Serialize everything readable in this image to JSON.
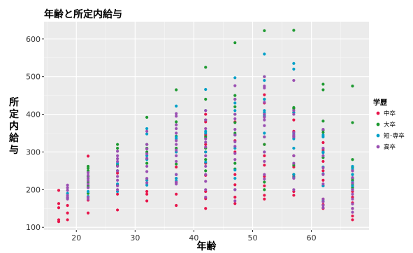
{
  "chart_data": {
    "type": "scatter",
    "title": "年齢と所定内給与",
    "xlabel": "年齢",
    "ylabel": "所定内給与",
    "xlim": [
      14.5,
      69.8
    ],
    "ylim": [
      93,
      646
    ],
    "xticks": [
      20,
      30,
      40,
      50,
      60
    ],
    "yticks": [
      100,
      200,
      300,
      400,
      500,
      600
    ],
    "grid": true,
    "legend": {
      "title": "学歴",
      "position": "right"
    },
    "series": [
      {
        "name": "中卒",
        "color": "#E7154B",
        "points": [
          [
            17,
            198
          ],
          [
            17,
            163
          ],
          [
            17,
            152
          ],
          [
            17,
            120
          ],
          [
            17,
            115
          ],
          [
            18.5,
            158
          ],
          [
            18.5,
            138
          ],
          [
            18.5,
            120
          ],
          [
            22,
            289
          ],
          [
            22,
            172
          ],
          [
            22,
            138
          ],
          [
            27,
            244
          ],
          [
            27,
            212
          ],
          [
            27,
            188
          ],
          [
            27,
            146
          ],
          [
            32,
            225
          ],
          [
            32,
            195
          ],
          [
            32,
            188
          ],
          [
            32,
            170
          ],
          [
            37,
            300
          ],
          [
            37,
            260
          ],
          [
            37,
            230
          ],
          [
            37,
            218
          ],
          [
            37,
            188
          ],
          [
            37,
            158
          ],
          [
            42,
            400
          ],
          [
            42,
            380
          ],
          [
            42,
            345
          ],
          [
            42,
            320
          ],
          [
            42,
            300
          ],
          [
            42,
            270
          ],
          [
            42,
            238
          ],
          [
            42,
            195
          ],
          [
            42,
            176
          ],
          [
            42,
            150
          ],
          [
            47,
            380
          ],
          [
            47,
            345
          ],
          [
            47,
            330
          ],
          [
            47,
            300
          ],
          [
            47,
            240
          ],
          [
            47,
            213
          ],
          [
            47,
            180
          ],
          [
            47,
            163
          ],
          [
            52,
            452
          ],
          [
            52,
            430
          ],
          [
            52,
            395
          ],
          [
            52,
            320
          ],
          [
            52,
            290
          ],
          [
            52,
            265
          ],
          [
            52,
            235
          ],
          [
            52,
            210
          ],
          [
            52,
            185
          ],
          [
            52,
            175
          ],
          [
            57,
            385
          ],
          [
            57,
            355
          ],
          [
            57,
            340
          ],
          [
            57,
            290
          ],
          [
            57,
            260
          ],
          [
            57,
            235
          ],
          [
            57,
            195
          ],
          [
            57,
            185
          ],
          [
            62,
            325
          ],
          [
            62,
            305
          ],
          [
            62,
            275
          ],
          [
            62,
            250
          ],
          [
            62,
            225
          ],
          [
            62,
            210
          ],
          [
            62,
            175
          ],
          [
            62,
            160
          ],
          [
            62,
            150
          ],
          [
            67,
            250
          ],
          [
            67,
            225
          ],
          [
            67,
            210
          ],
          [
            67,
            195
          ],
          [
            67,
            180
          ],
          [
            67,
            165
          ],
          [
            67,
            150
          ],
          [
            67,
            130
          ],
          [
            67,
            120
          ]
        ]
      },
      {
        "name": "大卒",
        "color": "#1E9A31",
        "points": [
          [
            22,
            262
          ],
          [
            22,
            257
          ],
          [
            22,
            250
          ],
          [
            22,
            235
          ],
          [
            22,
            220
          ],
          [
            22,
            210
          ],
          [
            22,
            190
          ],
          [
            27,
            320
          ],
          [
            27,
            310
          ],
          [
            27,
            265
          ],
          [
            27,
            250
          ],
          [
            32,
            392
          ],
          [
            32,
            320
          ],
          [
            32,
            310
          ],
          [
            32,
            300
          ],
          [
            32,
            270
          ],
          [
            37,
            465
          ],
          [
            37,
            380
          ],
          [
            37,
            342
          ],
          [
            37,
            310
          ],
          [
            37,
            268
          ],
          [
            42,
            525
          ],
          [
            42,
            440
          ],
          [
            42,
            385
          ],
          [
            42,
            340
          ],
          [
            42,
            310
          ],
          [
            42,
            280
          ],
          [
            42,
            250
          ],
          [
            47,
            590
          ],
          [
            47,
            450
          ],
          [
            47,
            440
          ],
          [
            47,
            420
          ],
          [
            47,
            400
          ],
          [
            47,
            378
          ],
          [
            47,
            350
          ],
          [
            47,
            270
          ],
          [
            47,
            255
          ],
          [
            52,
            622
          ],
          [
            52,
            500
          ],
          [
            52,
            440
          ],
          [
            52,
            400
          ],
          [
            52,
            340
          ],
          [
            52,
            320
          ],
          [
            52,
            220
          ],
          [
            52,
            200
          ],
          [
            57,
            623
          ],
          [
            57,
            418
          ],
          [
            57,
            415
          ],
          [
            57,
            405
          ],
          [
            57,
            265
          ],
          [
            57,
            240
          ],
          [
            62,
            480
          ],
          [
            62,
            465
          ],
          [
            62,
            382
          ],
          [
            62,
            358
          ],
          [
            62,
            352
          ],
          [
            62,
            300
          ],
          [
            62,
            285
          ],
          [
            67,
            475
          ],
          [
            67,
            378
          ],
          [
            67,
            280
          ],
          [
            67,
            260
          ],
          [
            67,
            240
          ],
          [
            67,
            230
          ],
          [
            67,
            225
          ],
          [
            67,
            215
          ],
          [
            67,
            205
          ]
        ]
      },
      {
        "name": "短･専卒",
        "color": "#00A0C8",
        "points": [
          [
            18.5,
            190
          ],
          [
            18.5,
            178
          ],
          [
            22,
            205
          ],
          [
            22,
            195
          ],
          [
            22,
            182
          ],
          [
            27,
            270
          ],
          [
            27,
            250
          ],
          [
            27,
            215
          ],
          [
            27,
            195
          ],
          [
            32,
            362
          ],
          [
            32,
            348
          ],
          [
            32,
            290
          ],
          [
            32,
            280
          ],
          [
            32,
            225
          ],
          [
            32,
            212
          ],
          [
            37,
            422
          ],
          [
            37,
            340
          ],
          [
            37,
            335
          ],
          [
            37,
            300
          ],
          [
            37,
            240
          ],
          [
            37,
            230
          ],
          [
            37,
            223
          ],
          [
            42,
            466
          ],
          [
            42,
            410
          ],
          [
            42,
            355
          ],
          [
            42,
            350
          ],
          [
            42,
            300
          ],
          [
            42,
            273
          ],
          [
            47,
            497
          ],
          [
            47,
            430
          ],
          [
            47,
            410
          ],
          [
            47,
            345
          ],
          [
            47,
            310
          ],
          [
            47,
            252
          ],
          [
            47,
            230
          ],
          [
            47,
            200
          ],
          [
            52,
            560
          ],
          [
            52,
            490
          ],
          [
            52,
            440
          ],
          [
            52,
            410
          ],
          [
            52,
            405
          ],
          [
            52,
            395
          ],
          [
            52,
            350
          ],
          [
            52,
            300
          ],
          [
            57,
            535
          ],
          [
            57,
            520
          ],
          [
            57,
            405
          ],
          [
            57,
            350
          ],
          [
            57,
            345
          ],
          [
            57,
            335
          ],
          [
            57,
            310
          ],
          [
            57,
            240
          ],
          [
            57,
            232
          ],
          [
            62,
            345
          ],
          [
            62,
            340
          ],
          [
            62,
            300
          ],
          [
            62,
            298
          ],
          [
            62,
            260
          ],
          [
            62,
            242
          ],
          [
            62,
            210
          ],
          [
            62,
            170
          ],
          [
            67,
            262
          ],
          [
            67,
            255
          ],
          [
            67,
            240
          ],
          [
            67,
            220
          ],
          [
            67,
            210
          ],
          [
            67,
            200
          ]
        ]
      },
      {
        "name": "高卒",
        "color": "#9A4FB2",
        "points": [
          [
            18.5,
            212
          ],
          [
            18.5,
            205
          ],
          [
            18.5,
            198
          ],
          [
            18.5,
            185
          ],
          [
            18.5,
            180
          ],
          [
            18.5,
            175
          ],
          [
            22,
            245
          ],
          [
            22,
            238
          ],
          [
            22,
            230
          ],
          [
            22,
            225
          ],
          [
            22,
            215
          ],
          [
            22,
            205
          ],
          [
            22,
            180
          ],
          [
            22,
            175
          ],
          [
            27,
            302
          ],
          [
            27,
            290
          ],
          [
            27,
            282
          ],
          [
            27,
            275
          ],
          [
            27,
            262
          ],
          [
            27,
            250
          ],
          [
            27,
            235
          ],
          [
            27,
            225
          ],
          [
            27,
            210
          ],
          [
            27,
            200
          ],
          [
            32,
            355
          ],
          [
            32,
            320
          ],
          [
            32,
            308
          ],
          [
            32,
            295
          ],
          [
            32,
            283
          ],
          [
            32,
            262
          ],
          [
            32,
            248
          ],
          [
            32,
            230
          ],
          [
            32,
            218
          ],
          [
            37,
            402
          ],
          [
            37,
            395
          ],
          [
            37,
            372
          ],
          [
            37,
            362
          ],
          [
            37,
            350
          ],
          [
            37,
            330
          ],
          [
            37,
            320
          ],
          [
            37,
            305
          ],
          [
            37,
            290
          ],
          [
            37,
            275
          ],
          [
            37,
            240
          ],
          [
            37,
            220
          ],
          [
            37,
            215
          ],
          [
            42,
            410
          ],
          [
            42,
            385
          ],
          [
            42,
            362
          ],
          [
            42,
            335
          ],
          [
            42,
            326
          ],
          [
            42,
            313
          ],
          [
            42,
            290
          ],
          [
            42,
            262
          ],
          [
            42,
            240
          ],
          [
            42,
            222
          ],
          [
            42,
            200
          ],
          [
            42,
            180
          ],
          [
            47,
            476
          ],
          [
            47,
            440
          ],
          [
            47,
            400
          ],
          [
            47,
            388
          ],
          [
            47,
            360
          ],
          [
            47,
            345
          ],
          [
            47,
            327
          ],
          [
            47,
            315
          ],
          [
            47,
            296
          ],
          [
            47,
            280
          ],
          [
            47,
            200
          ],
          [
            47,
            170
          ],
          [
            52,
            500
          ],
          [
            52,
            475
          ],
          [
            52,
            470
          ],
          [
            52,
            432
          ],
          [
            52,
            400
          ],
          [
            52,
            392
          ],
          [
            52,
            385
          ],
          [
            52,
            370
          ],
          [
            52,
            340
          ],
          [
            52,
            300
          ],
          [
            52,
            275
          ],
          [
            52,
            240
          ],
          [
            52,
            228
          ],
          [
            57,
            490
          ],
          [
            57,
            410
          ],
          [
            57,
            400
          ],
          [
            57,
            352
          ],
          [
            57,
            345
          ],
          [
            57,
            340
          ],
          [
            57,
            290
          ],
          [
            57,
            270
          ],
          [
            57,
            230
          ],
          [
            57,
            200
          ],
          [
            62,
            360
          ],
          [
            62,
            310
          ],
          [
            62,
            290
          ],
          [
            62,
            258
          ],
          [
            62,
            240
          ],
          [
            62,
            215
          ],
          [
            62,
            175
          ],
          [
            62,
            168
          ],
          [
            62,
            158
          ],
          [
            62,
            152
          ],
          [
            67,
            250
          ],
          [
            67,
            232
          ],
          [
            67,
            218
          ],
          [
            67,
            200
          ],
          [
            67,
            188
          ],
          [
            67,
            175
          ],
          [
            67,
            162
          ],
          [
            67,
            150
          ],
          [
            67,
            140
          ]
        ]
      }
    ]
  }
}
